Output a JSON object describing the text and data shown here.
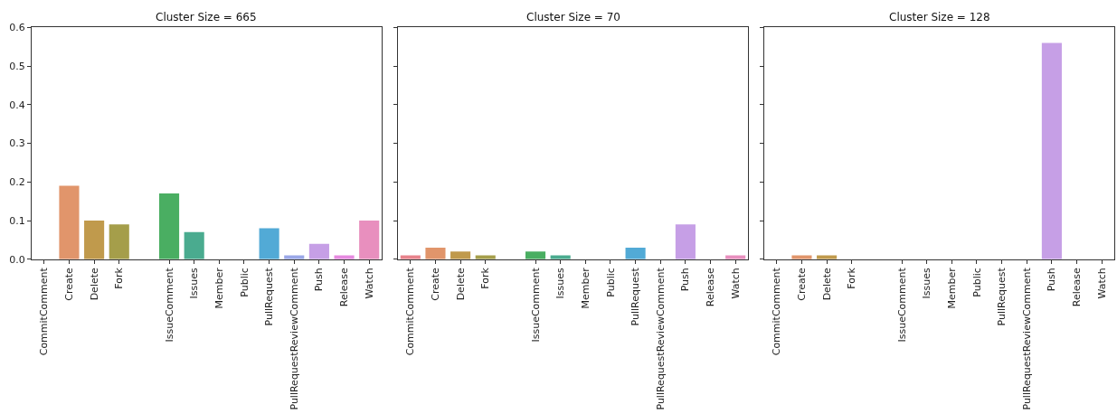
{
  "chart_data": [
    {
      "type": "bar",
      "title": "Cluster Size = 665",
      "categories": [
        "CommitComment",
        "Create",
        "Delete",
        "Fork",
        null,
        "IssueComment",
        "Issues",
        "Member",
        "Public",
        "PullRequest",
        "PullRequestReviewComment",
        "Push",
        "Release",
        "Watch"
      ],
      "values": [
        0,
        0.19,
        0.1,
        0.09,
        0,
        0.17,
        0.07,
        0,
        0,
        0.08,
        0.01,
        0.04,
        0.01,
        0.1
      ],
      "colors": [
        "#e8838c",
        "#e1956b",
        "#c09a4c",
        "#a59e4a",
        "#8aa24a",
        "#4aae62",
        "#4aab8f",
        "#4aa9a6",
        "#4bacbe",
        "#52aad6",
        "#9aa7e8",
        "#c69fe6",
        "#e68ae0",
        "#e88fbe"
      ],
      "ylim": [
        0,
        0.6
      ],
      "yticks": [
        {
          "value": 0,
          "label": "0.0"
        },
        0.1,
        0.2,
        0.3,
        0.4,
        0.5,
        0.6
      ]
    },
    {
      "type": "bar",
      "title": "Cluster Size = 70",
      "categories": [
        "CommitComment",
        "Create",
        "Delete",
        "Fork",
        null,
        "IssueComment",
        "Issues",
        "Member",
        "Public",
        "PullRequest",
        "PullRequestReviewComment",
        "Push",
        "Release",
        "Watch"
      ],
      "values": [
        0.01,
        0.03,
        0.02,
        0.01,
        0,
        0.02,
        0.01,
        0,
        0,
        0.03,
        0,
        0.09,
        0,
        0.01
      ],
      "colors": [
        "#e8838c",
        "#e1956b",
        "#c09a4c",
        "#a59e4a",
        "#8aa24a",
        "#4aae62",
        "#4aab8f",
        "#4aa9a6",
        "#4bacbe",
        "#52aad6",
        "#9aa7e8",
        "#c69fe6",
        "#e68ae0",
        "#e88fbe"
      ],
      "ylim": [
        0,
        0.6
      ],
      "yticks": [
        0.0,
        0.1,
        0.2,
        0.3,
        0.4,
        0.5,
        0.6
      ],
      "tick_labels": "x"
    },
    {
      "type": "bar",
      "title": "Cluster Size = 128",
      "categories": [
        "CommitComment",
        "Create",
        "Delete",
        "Fork",
        null,
        "IssueComment",
        "Issues",
        "Member",
        "Public",
        "PullRequest",
        "PullRequestReviewComment",
        "Push",
        "Release",
        "Watch"
      ],
      "values": [
        0,
        0.01,
        0.01,
        0,
        0,
        0,
        0,
        0,
        0,
        0,
        0,
        0.56,
        0,
        0
      ],
      "colors": [
        "#e8838c",
        "#e1956b",
        "#c09a4c",
        "#a59e4a",
        "#8aa24a",
        "#4aae62",
        "#4aab8f",
        "#4aa9a6",
        "#4bacbe",
        "#52aad6",
        "#9aa7e8",
        "#c69fe6",
        "#e68ae0",
        "#e88fbe"
      ],
      "ylim": [
        0,
        0.6
      ],
      "yticks": [
        0.0,
        0.1,
        0.2,
        0.3,
        0.4,
        0.5,
        0.6
      ],
      "tick_labels": "x"
    }
  ]
}
